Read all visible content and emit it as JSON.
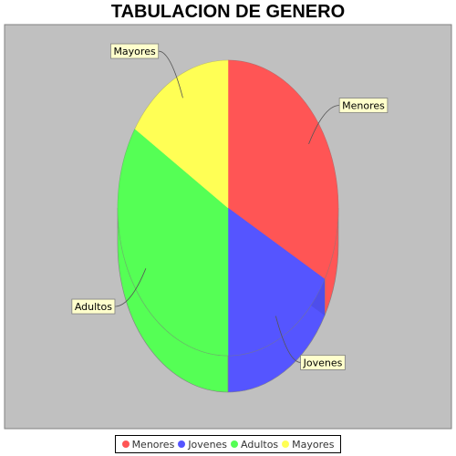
{
  "chart_data": {
    "type": "pie",
    "title": "TABULACION DE GENERO",
    "categories": [
      "Menores",
      "Jovenes",
      "Adultos",
      "Mayores"
    ],
    "values": [
      33,
      17,
      34,
      16
    ],
    "colors": [
      "#ff5555",
      "#5555ff",
      "#55ff55",
      "#ffff55"
    ],
    "plot_background": "#c0c0c0",
    "legend_position": "bottom",
    "style": "3d"
  }
}
